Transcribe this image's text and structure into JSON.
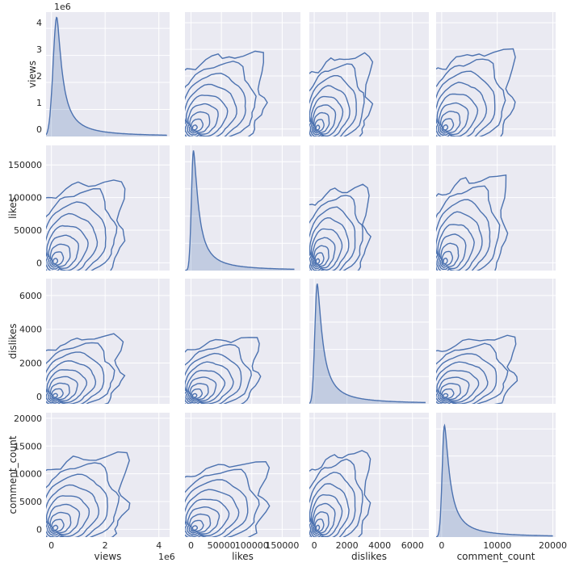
{
  "chart_data": {
    "type": "pairplot",
    "variables": [
      "views",
      "likes",
      "dislikes",
      "comment_count"
    ],
    "diagonal": "kde",
    "offdiagonal": "kde contours",
    "style": {
      "background": "#eaeaf2",
      "grid": "#ffffff",
      "line_color": "#4c72b0",
      "fill_color": "#4c72b0"
    },
    "axes": {
      "views": {
        "label": "views",
        "x_range": [
          -200000,
          4400000
        ],
        "y_range": [
          -280000,
          4400000
        ],
        "x_ticks": [
          {
            "v": 0,
            "t": "0"
          },
          {
            "v": 2000000,
            "t": "2"
          },
          {
            "v": 4000000,
            "t": "4"
          }
        ],
        "y_ticks": [
          {
            "v": 0,
            "t": "0"
          },
          {
            "v": 1000000,
            "t": "1"
          },
          {
            "v": 2000000,
            "t": "2"
          },
          {
            "v": 3000000,
            "t": "3"
          },
          {
            "v": 4000000,
            "t": "4"
          }
        ],
        "offset": "1e6"
      },
      "likes": {
        "label": "likes",
        "x_range": [
          -10000,
          180000
        ],
        "y_range": [
          -12000,
          180000
        ],
        "x_ticks": [
          {
            "v": 0,
            "t": "0"
          },
          {
            "v": 50000,
            "t": "50000"
          },
          {
            "v": 100000,
            "t": "100000"
          },
          {
            "v": 150000,
            "t": "150000"
          }
        ],
        "y_ticks": [
          {
            "v": 0,
            "t": "0"
          },
          {
            "v": 50000,
            "t": "50000"
          },
          {
            "v": 100000,
            "t": "100000"
          },
          {
            "v": 150000,
            "t": "150000"
          }
        ]
      },
      "dislikes": {
        "label": "dislikes",
        "x_range": [
          -300,
          7000
        ],
        "y_range": [
          -420,
          7000
        ],
        "x_ticks": [
          {
            "v": 0,
            "t": "0"
          },
          {
            "v": 2000,
            "t": "2000"
          },
          {
            "v": 4000,
            "t": "4000"
          },
          {
            "v": 6000,
            "t": "6000"
          }
        ],
        "y_ticks": [
          {
            "v": 0,
            "t": "0"
          },
          {
            "v": 2000,
            "t": "2000"
          },
          {
            "v": 4000,
            "t": "4000"
          },
          {
            "v": 6000,
            "t": "6000"
          }
        ]
      },
      "comment_count": {
        "label": "comment_count",
        "x_range": [
          -1000,
          20500
        ],
        "y_range": [
          -1400,
          21000
        ],
        "x_ticks": [
          {
            "v": 0,
            "t": "0"
          },
          {
            "v": 10000,
            "t": "10000"
          },
          {
            "v": 20000,
            "t": "20000"
          }
        ],
        "y_ticks": [
          {
            "v": 0,
            "t": "0"
          },
          {
            "v": 5000,
            "t": "5000"
          },
          {
            "v": 10000,
            "t": "10000"
          },
          {
            "v": 15000,
            "t": "15000"
          },
          {
            "v": 20000,
            "t": "20000"
          }
        ]
      }
    },
    "diag_kde": {
      "views": {
        "peak_x": 200000,
        "peak_density_ratio": 0.96,
        "tail_end": 4300000
      },
      "likes": {
        "peak_x": 4000,
        "peak_density_ratio": 0.96,
        "tail_end": 170000
      },
      "dislikes": {
        "peak_x": 180,
        "peak_density_ratio": 0.96,
        "tail_end": 6800
      },
      "comment_count": {
        "peak_x": 500,
        "peak_density_ratio": 0.9,
        "tail_end": 20000
      }
    },
    "contour_levels": 9,
    "outer_contour_max": {
      "views_likes": [
        2700000,
        120000
      ],
      "views_dislikes": [
        2600000,
        3400
      ],
      "views_comment_count": [
        2800000,
        12800
      ],
      "likes_dislikes": [
        110000,
        3300
      ],
      "likes_comment_count": [
        125000,
        11500
      ],
      "dislikes_comment_count": [
        3300,
        13200
      ]
    }
  }
}
